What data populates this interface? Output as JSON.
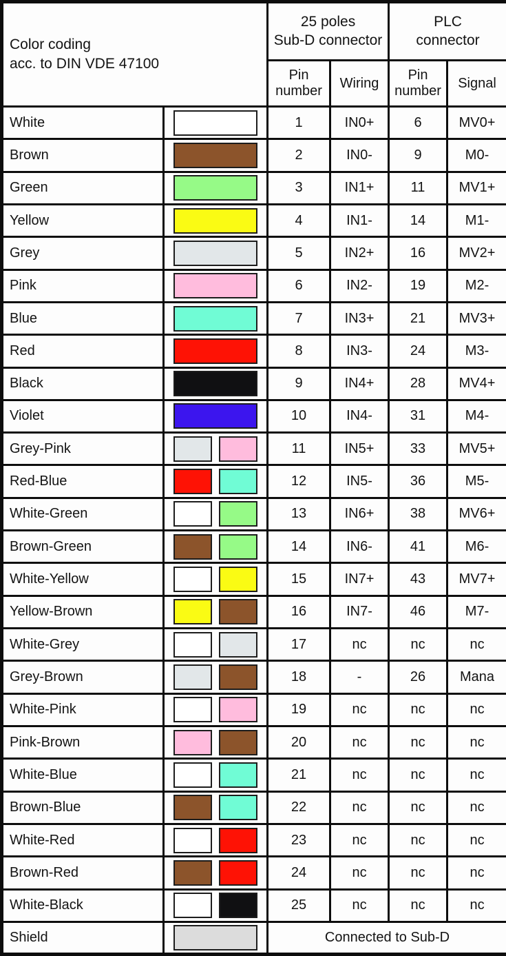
{
  "header": {
    "title_line1": "Color coding",
    "title_line2": "acc. to DIN VDE 47100",
    "subd_line1": "25 poles",
    "subd_line2": "Sub-D connector",
    "plc_line1": "PLC",
    "plc_line2": "connector",
    "pin_subd_line1": "Pin",
    "pin_subd_line2": "number",
    "wiring": "Wiring",
    "pin_plc_line1": "Pin",
    "pin_plc_line2": "number",
    "signal": "Signal"
  },
  "palette": {
    "white": "#ffffff",
    "brown": "#8c542b",
    "green": "#96fa87",
    "yellow": "#fafb14",
    "grey": "#e2e7e9",
    "pink": "#ffbcdd",
    "blue": "#70fcd5",
    "red": "#fe1205",
    "black": "#101012",
    "violet": "#3c15ee",
    "shield": "#dcdcdc"
  },
  "rows": [
    {
      "name": "White",
      "colors": [
        "white"
      ],
      "pin_subd": "1",
      "wiring": "IN0+",
      "pin_plc": "6",
      "signal": "MV0+"
    },
    {
      "name": "Brown",
      "colors": [
        "brown"
      ],
      "pin_subd": "2",
      "wiring": "IN0-",
      "pin_plc": "9",
      "signal": "M0-"
    },
    {
      "name": "Green",
      "colors": [
        "green"
      ],
      "pin_subd": "3",
      "wiring": "IN1+",
      "pin_plc": "11",
      "signal": "MV1+"
    },
    {
      "name": "Yellow",
      "colors": [
        "yellow"
      ],
      "pin_subd": "4",
      "wiring": "IN1-",
      "pin_plc": "14",
      "signal": "M1-"
    },
    {
      "name": "Grey",
      "colors": [
        "grey"
      ],
      "pin_subd": "5",
      "wiring": "IN2+",
      "pin_plc": "16",
      "signal": "MV2+"
    },
    {
      "name": "Pink",
      "colors": [
        "pink"
      ],
      "pin_subd": "6",
      "wiring": "IN2-",
      "pin_plc": "19",
      "signal": "M2-"
    },
    {
      "name": "Blue",
      "colors": [
        "blue"
      ],
      "pin_subd": "7",
      "wiring": "IN3+",
      "pin_plc": "21",
      "signal": "MV3+"
    },
    {
      "name": "Red",
      "colors": [
        "red"
      ],
      "pin_subd": "8",
      "wiring": "IN3-",
      "pin_plc": "24",
      "signal": "M3-"
    },
    {
      "name": "Black",
      "colors": [
        "black"
      ],
      "pin_subd": "9",
      "wiring": "IN4+",
      "pin_plc": "28",
      "signal": "MV4+"
    },
    {
      "name": "Violet",
      "colors": [
        "violet"
      ],
      "pin_subd": "10",
      "wiring": "IN4-",
      "pin_plc": "31",
      "signal": "M4-"
    },
    {
      "name": "Grey-Pink",
      "colors": [
        "grey",
        "pink"
      ],
      "pin_subd": "11",
      "wiring": "IN5+",
      "pin_plc": "33",
      "signal": "MV5+"
    },
    {
      "name": "Red-Blue",
      "colors": [
        "red",
        "blue"
      ],
      "pin_subd": "12",
      "wiring": "IN5-",
      "pin_plc": "36",
      "signal": "M5-"
    },
    {
      "name": "White-Green",
      "colors": [
        "white",
        "green"
      ],
      "pin_subd": "13",
      "wiring": "IN6+",
      "pin_plc": "38",
      "signal": "MV6+"
    },
    {
      "name": "Brown-Green",
      "colors": [
        "brown",
        "green"
      ],
      "pin_subd": "14",
      "wiring": "IN6-",
      "pin_plc": "41",
      "signal": "M6-"
    },
    {
      "name": "White-Yellow",
      "colors": [
        "white",
        "yellow"
      ],
      "pin_subd": "15",
      "wiring": "IN7+",
      "pin_plc": "43",
      "signal": "MV7+"
    },
    {
      "name": "Yellow-Brown",
      "colors": [
        "yellow",
        "brown"
      ],
      "pin_subd": "16",
      "wiring": "IN7-",
      "pin_plc": "46",
      "signal": "M7-"
    },
    {
      "name": "White-Grey",
      "colors": [
        "white",
        "grey"
      ],
      "pin_subd": "17",
      "wiring": "nc",
      "pin_plc": "nc",
      "signal": "nc"
    },
    {
      "name": "Grey-Brown",
      "colors": [
        "grey",
        "brown"
      ],
      "pin_subd": "18",
      "wiring": "-",
      "pin_plc": "26",
      "signal": "Mana"
    },
    {
      "name": "White-Pink",
      "colors": [
        "white",
        "pink"
      ],
      "pin_subd": "19",
      "wiring": "nc",
      "pin_plc": "nc",
      "signal": "nc"
    },
    {
      "name": "Pink-Brown",
      "colors": [
        "pink",
        "brown"
      ],
      "pin_subd": "20",
      "wiring": "nc",
      "pin_plc": "nc",
      "signal": "nc"
    },
    {
      "name": "White-Blue",
      "colors": [
        "white",
        "blue"
      ],
      "pin_subd": "21",
      "wiring": "nc",
      "pin_plc": "nc",
      "signal": "nc"
    },
    {
      "name": "Brown-Blue",
      "colors": [
        "brown",
        "blue"
      ],
      "pin_subd": "22",
      "wiring": "nc",
      "pin_plc": "nc",
      "signal": "nc"
    },
    {
      "name": "White-Red",
      "colors": [
        "white",
        "red"
      ],
      "pin_subd": "23",
      "wiring": "nc",
      "pin_plc": "nc",
      "signal": "nc"
    },
    {
      "name": "Brown-Red",
      "colors": [
        "brown",
        "red"
      ],
      "pin_subd": "24",
      "wiring": "nc",
      "pin_plc": "nc",
      "signal": "nc"
    },
    {
      "name": "White-Black",
      "colors": [
        "white",
        "black"
      ],
      "pin_subd": "25",
      "wiring": "nc",
      "pin_plc": "nc",
      "signal": "nc"
    }
  ],
  "footer": {
    "name": "Shield",
    "colors": [
      "shield"
    ],
    "note": "Connected to Sub-D"
  }
}
